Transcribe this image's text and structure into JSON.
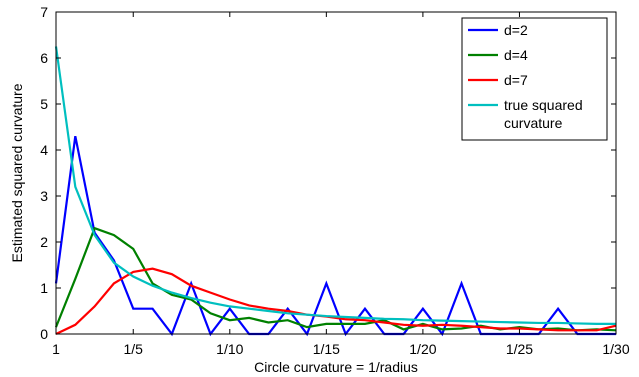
{
  "chart_data": {
    "type": "line",
    "xlabel": "Circle curvature = 1/radius",
    "ylabel": "Estimated squared curvature",
    "xlim": [
      1,
      30
    ],
    "ylim": [
      0,
      7
    ],
    "xticks": [
      1,
      5,
      10,
      15,
      20,
      25,
      30
    ],
    "xtick_labels": [
      "1",
      "1/5",
      "1/10",
      "1/15",
      "1/20",
      "1/25",
      "1/30"
    ],
    "yticks": [
      0,
      1,
      2,
      3,
      4,
      5,
      6,
      7
    ],
    "ytick_labels": [
      "0",
      "1",
      "2",
      "3",
      "4",
      "5",
      "6",
      "7"
    ],
    "grid": false,
    "legend_position": "top-right",
    "x": [
      1,
      2,
      3,
      4,
      5,
      6,
      7,
      8,
      9,
      10,
      11,
      12,
      13,
      14,
      15,
      16,
      17,
      18,
      19,
      20,
      21,
      22,
      23,
      24,
      25,
      26,
      27,
      28,
      29,
      30
    ],
    "series": [
      {
        "name": "d=2",
        "color": "#0000ff",
        "values": [
          1.1,
          4.3,
          2.2,
          1.6,
          0.55,
          0.55,
          0.0,
          1.1,
          0.0,
          0.55,
          0.0,
          0.0,
          0.55,
          0.0,
          1.1,
          0.0,
          0.55,
          0.0,
          0.0,
          0.55,
          0.0,
          1.1,
          0.0,
          0.0,
          0.0,
          0.0,
          0.55,
          0.0,
          0.0,
          0.0
        ]
      },
      {
        "name": "d=4",
        "color": "#008000",
        "values": [
          0.15,
          1.2,
          2.3,
          2.15,
          1.85,
          1.1,
          0.85,
          0.75,
          0.45,
          0.3,
          0.35,
          0.25,
          0.3,
          0.15,
          0.22,
          0.22,
          0.22,
          0.3,
          0.1,
          0.22,
          0.1,
          0.12,
          0.18,
          0.1,
          0.15,
          0.1,
          0.12,
          0.08,
          0.1,
          0.08
        ]
      },
      {
        "name": "d=7",
        "color": "#ff0000",
        "values": [
          0.0,
          0.2,
          0.6,
          1.1,
          1.35,
          1.42,
          1.3,
          1.05,
          0.9,
          0.75,
          0.62,
          0.55,
          0.5,
          0.42,
          0.38,
          0.32,
          0.3,
          0.25,
          0.2,
          0.18,
          0.2,
          0.18,
          0.15,
          0.12,
          0.12,
          0.1,
          0.08,
          0.08,
          0.08,
          0.18
        ]
      },
      {
        "name": "true squared curvature",
        "legend_lines": [
          "true squared",
          "curvature"
        ],
        "color": "#00bfbf",
        "values": [
          6.25,
          3.2,
          2.15,
          1.55,
          1.25,
          1.05,
          0.9,
          0.78,
          0.68,
          0.6,
          0.55,
          0.5,
          0.45,
          0.42,
          0.39,
          0.37,
          0.35,
          0.33,
          0.32,
          0.3,
          0.29,
          0.28,
          0.27,
          0.26,
          0.25,
          0.24,
          0.24,
          0.23,
          0.22,
          0.22
        ]
      }
    ]
  }
}
